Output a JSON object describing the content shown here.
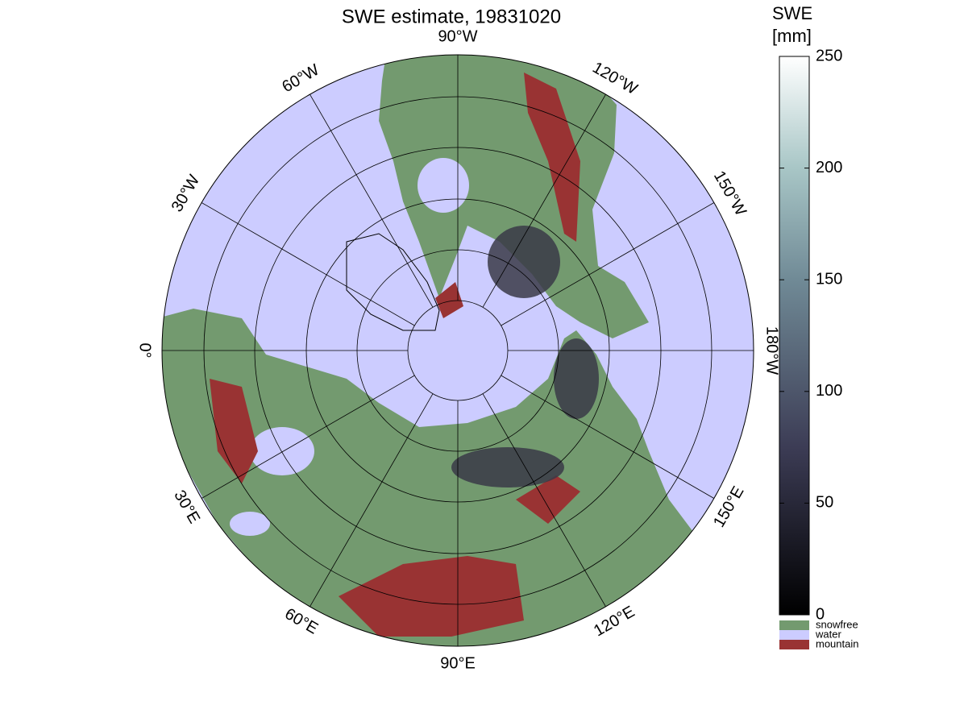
{
  "title": "SWE estimate, 19831020",
  "longitude_labels": [
    "90°W",
    "120°W",
    "150°W",
    "180°W",
    "150°E",
    "120°E",
    "90°E",
    "60°E",
    "30°E",
    "0°",
    "30°W",
    "60°W"
  ],
  "colorbar": {
    "label_line1": "SWE",
    "label_line2": "[mm]",
    "lim": [
      0,
      250
    ],
    "ticks": [
      0,
      50,
      100,
      150,
      200,
      250
    ]
  },
  "legend": [
    {
      "label": "snowfree",
      "color": "#739a6f"
    },
    {
      "label": "water",
      "color": "#ccccff"
    },
    {
      "label": "mountain",
      "color": "#993333"
    }
  ]
}
